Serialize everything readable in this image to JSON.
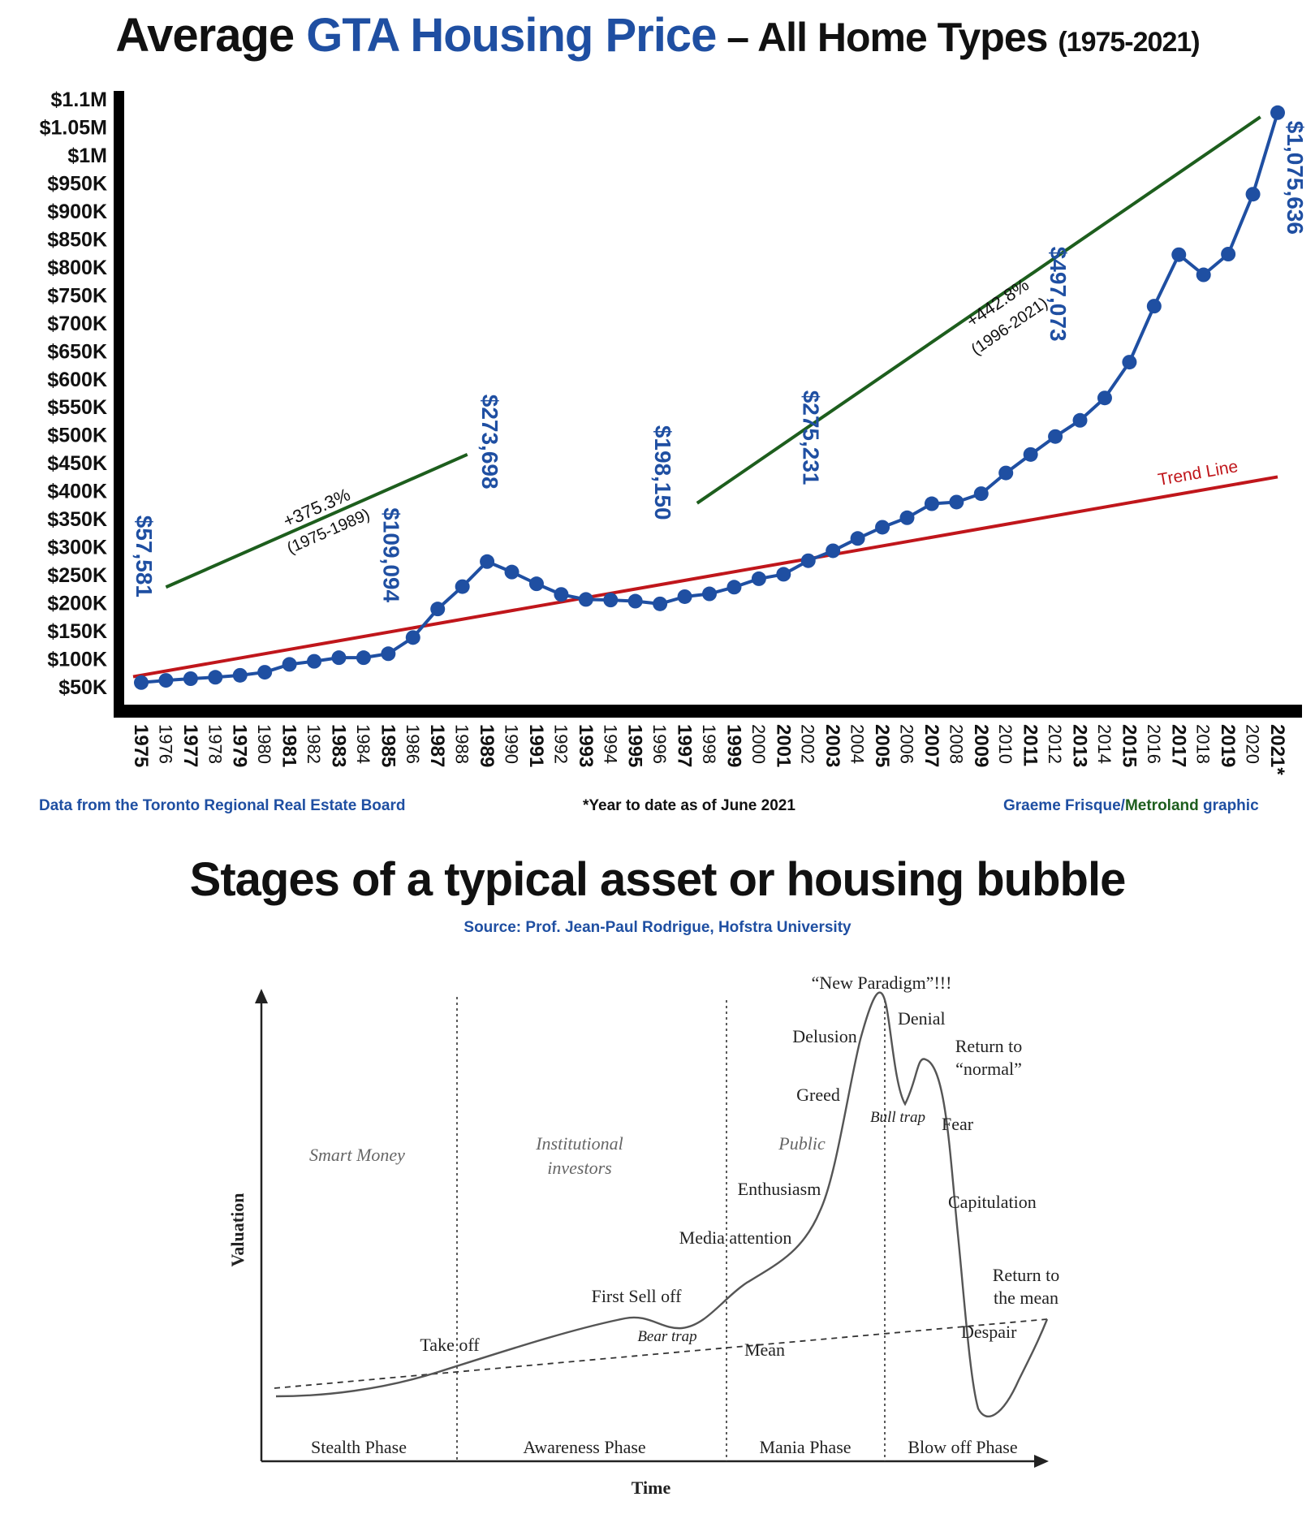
{
  "top_chart": {
    "title": {
      "part1": "Average ",
      "part2": "GTA Housing Price",
      "part3": " – All Home Types ",
      "part4": "(1975-2021)"
    },
    "sources": {
      "left": "Data from the Toronto Regional Real Estate Board",
      "center": "*Year to date as of June 2021",
      "right_a": "Graeme Frisque/",
      "right_b": "Metroland",
      "right_c": " graphic"
    },
    "trend_label": "Trend Line",
    "annotations": [
      {
        "pct": "+375.3%",
        "range": "(1975-1989)"
      },
      {
        "pct": "+442.8%",
        "range": "(1996-2021)"
      }
    ],
    "data_labels": [
      {
        "year": 1975,
        "text": "$57,581"
      },
      {
        "year": 1985,
        "text": "$109,094"
      },
      {
        "year": 1989,
        "text": "$273,698"
      },
      {
        "year": 1996,
        "text": "$198,150"
      },
      {
        "year": 2002,
        "text": "$275,231"
      },
      {
        "year": 2012,
        "text": "$497,073"
      },
      {
        "year": 2021,
        "text": "$1,075,636"
      }
    ],
    "colors": {
      "line": "#1f4fa2",
      "trend": "#c0161b",
      "growth": "#1d5e1d",
      "axis": "#000000"
    }
  },
  "chart_data": [
    {
      "type": "line",
      "title": "Average GTA Housing Price – All Home Types (1975-2021)",
      "xlabel": "",
      "ylabel": "",
      "ylim": [
        50000,
        1100000
      ],
      "y_tick_labels": [
        "$50K",
        "$100K",
        "$150K",
        "$200K",
        "$250K",
        "$300K",
        "$350K",
        "$400K",
        "$450K",
        "$500K",
        "$550K",
        "$600K",
        "$650K",
        "$700K",
        "$750K",
        "$800K",
        "$850K",
        "$900K",
        "$950K",
        "$1M",
        "$1.05M",
        "$1.1M"
      ],
      "y_ticks": [
        50000,
        100000,
        150000,
        200000,
        250000,
        300000,
        350000,
        400000,
        450000,
        500000,
        550000,
        600000,
        650000,
        700000,
        750000,
        800000,
        850000,
        900000,
        950000,
        1000000,
        1050000,
        1100000
      ],
      "x": [
        1975,
        1976,
        1977,
        1978,
        1979,
        1980,
        1981,
        1982,
        1983,
        1984,
        1985,
        1986,
        1987,
        1988,
        1989,
        1990,
        1991,
        1992,
        1993,
        1994,
        1995,
        1996,
        1997,
        1998,
        1999,
        2000,
        2001,
        2002,
        2003,
        2004,
        2005,
        2006,
        2007,
        2008,
        2009,
        2010,
        2011,
        2012,
        2013,
        2014,
        2015,
        2016,
        2017,
        2018,
        2019,
        2020,
        2021
      ],
      "x_tick_labels": [
        "1975",
        "1976",
        "1977",
        "1978",
        "1979",
        "1980",
        "1981",
        "1982",
        "1983",
        "1984",
        "1985",
        "1986",
        "1987",
        "1988",
        "1989",
        "1990",
        "1991",
        "1992",
        "1993",
        "1994",
        "1995",
        "1996",
        "1997",
        "1998",
        "1999",
        "2000",
        "2001",
        "2002",
        "2003",
        "2004",
        "2005",
        "2006",
        "2007",
        "2008",
        "2009",
        "2010",
        "2011",
        "2012",
        "2013",
        "2014",
        "2015",
        "2016",
        "2017",
        "2018",
        "2019",
        "2020",
        "2021*"
      ],
      "bold_years": [
        1975,
        1977,
        1979,
        1981,
        1983,
        1985,
        1987,
        1989,
        1991,
        1993,
        1995,
        1997,
        1999,
        2001,
        2003,
        2005,
        2007,
        2009,
        2011,
        2013,
        2015,
        2017,
        2019,
        2021
      ],
      "series": [
        {
          "name": "",
          "values": [
            57581,
            61500,
            64500,
            67000,
            70500,
            76000,
            90000,
            95500,
            102000,
            102000,
            109094,
            138000,
            189000,
            229000,
            273698,
            255000,
            234000,
            215000,
            206000,
            205000,
            203000,
            198150,
            211000,
            216000,
            228000,
            243000,
            251000,
            275231,
            293000,
            315000,
            335000,
            352000,
            377000,
            380000,
            395000,
            432000,
            465000,
            497073,
            526000,
            566000,
            630000,
            730000,
            822000,
            786000,
            823000,
            930000,
            1075636
          ]
        },
        {
          "name": "Trend Line",
          "x": [
            1975,
            2021
          ],
          "values": [
            68000,
            425000
          ]
        }
      ],
      "growth_lines": [
        {
          "label": "+375.3% (1975-1989)",
          "x": [
            1976,
            1988.2
          ],
          "values": [
            228000,
            465000
          ]
        },
        {
          "label": "+442.8% (1996-2021)",
          "x": [
            1997.5,
            2020.3
          ],
          "values": [
            378000,
            1068000
          ]
        }
      ],
      "grid": false,
      "legend": "none"
    },
    {
      "type": "line",
      "title": "Stages of a typical asset or housing bubble",
      "xlabel": "Time",
      "ylabel": "Valuation",
      "phases": [
        "Stealth Phase",
        "Awareness Phase",
        "Mania Phase",
        "Blow off Phase"
      ],
      "actors": [
        "Smart Money",
        "Institutional investors",
        "Public"
      ],
      "series": [
        {
          "name": "",
          "points": [
            [
              0.0,
              0.1
            ],
            [
              0.1,
              0.12
            ],
            [
              0.18,
              0.15
            ],
            [
              0.24,
              0.21
            ],
            [
              0.3,
              0.28
            ],
            [
              0.36,
              0.34
            ],
            [
              0.41,
              0.37
            ],
            [
              0.46,
              0.34
            ],
            [
              0.49,
              0.35
            ],
            [
              0.52,
              0.39
            ],
            [
              0.56,
              0.45
            ],
            [
              0.62,
              0.52
            ],
            [
              0.65,
              0.58
            ],
            [
              0.68,
              0.68
            ],
            [
              0.71,
              0.84
            ],
            [
              0.74,
              0.95
            ],
            [
              0.77,
              0.98
            ],
            [
              0.79,
              0.88
            ],
            [
              0.8,
              0.73
            ],
            [
              0.82,
              0.71
            ],
            [
              0.85,
              0.79
            ],
            [
              0.87,
              0.7
            ],
            [
              0.9,
              0.4
            ],
            [
              0.93,
              0.15
            ],
            [
              0.97,
              0.07
            ],
            [
              1.0,
              0.06
            ],
            [
              1.05,
              0.2
            ],
            [
              1.1,
              0.32
            ]
          ]
        },
        {
          "name": "Mean",
          "points": [
            [
              0.0,
              0.1
            ],
            [
              1.1,
              0.26
            ]
          ]
        }
      ],
      "annotations": [
        "Take off",
        "First Sell off",
        "Bear trap",
        "Media attention",
        "Enthusiasm",
        "Greed",
        "Delusion",
        "“New Paradigm”!!!",
        "Denial",
        "Bull trap",
        "Return to “normal”",
        "Fear",
        "Capitulation",
        "Despair",
        "Return to the mean",
        "Mean"
      ]
    }
  ],
  "bubble": {
    "title": "Stages of a typical asset or housing bubble",
    "source": "Source: Prof. Jean-Paul Rodrigue, Hofstra University",
    "xlabel": "Time",
    "ylabel": "Valuation",
    "phases": [
      "Stealth Phase",
      "Awareness Phase",
      "Mania Phase",
      "Blow off Phase"
    ],
    "actors": [
      "Smart Money",
      "Institutional",
      "investors",
      "Public"
    ],
    "labels": {
      "take_off": "Take off",
      "first_sell_off": "First Sell off",
      "bear_trap": "Bear trap",
      "media_attention": "Media attention",
      "enthusiasm": "Enthusiasm",
      "greed": "Greed",
      "delusion": "Delusion",
      "new_paradigm": "“New Paradigm”!!!",
      "denial": "Denial",
      "bull_trap": "Bull trap",
      "return_normal_1": "Return to",
      "return_normal_2": "“normal”",
      "fear": "Fear",
      "capitulation": "Capitulation",
      "despair": "Despair",
      "return_mean_1": "Return to",
      "return_mean_2": "the mean",
      "mean": "Mean"
    }
  }
}
